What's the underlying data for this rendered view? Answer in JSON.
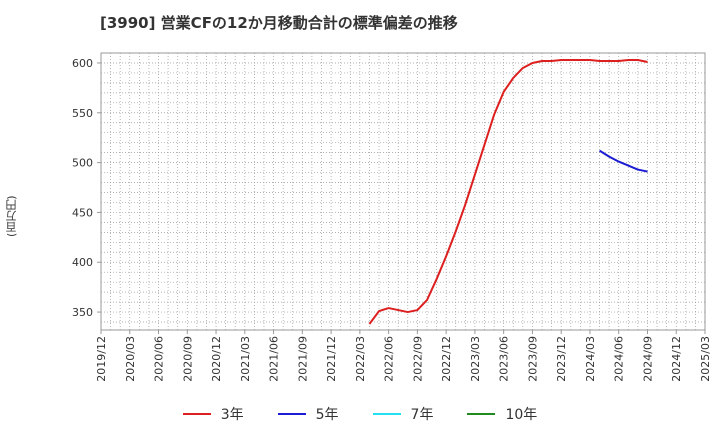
{
  "chart_data": {
    "type": "line",
    "title": "[3990]  営業CFの12か月移動合計の標準偏差の推移",
    "ylabel": "(百万円)",
    "xlabel": "",
    "ylim": [
      332,
      610
    ],
    "yticks": [
      350,
      400,
      450,
      500,
      550,
      600
    ],
    "x_range": [
      "2019/12",
      "2025/03"
    ],
    "xticks": [
      "2019/12",
      "2020/03",
      "2020/06",
      "2020/09",
      "2020/12",
      "2021/03",
      "2021/06",
      "2021/09",
      "2021/12",
      "2022/03",
      "2022/06",
      "2022/09",
      "2022/12",
      "2023/03",
      "2023/06",
      "2023/09",
      "2023/12",
      "2024/03",
      "2024/06",
      "2024/09",
      "2024/12",
      "2025/03"
    ],
    "grid": true,
    "legend_position": "bottom",
    "series": [
      {
        "name": "3年",
        "color": "#dd1f1f",
        "x": [
          "2022/04",
          "2022/05",
          "2022/06",
          "2022/07",
          "2022/08",
          "2022/09",
          "2022/10",
          "2022/11",
          "2022/12",
          "2023/01",
          "2023/02",
          "2023/03",
          "2023/04",
          "2023/05",
          "2023/06",
          "2023/07",
          "2023/08",
          "2023/09",
          "2023/10",
          "2023/11",
          "2023/12",
          "2024/01",
          "2024/02",
          "2024/03",
          "2024/04",
          "2024/05",
          "2024/06",
          "2024/07",
          "2024/08",
          "2024/09"
        ],
        "values": [
          338,
          351,
          354,
          352,
          350,
          352,
          362,
          383,
          406,
          431,
          458,
          488,
          518,
          548,
          571,
          585,
          595,
          600,
          602,
          602,
          603,
          603,
          603,
          603,
          602,
          602,
          602,
          603,
          603,
          601
        ]
      },
      {
        "name": "5年",
        "color": "#1c1cd4",
        "x": [
          "2024/04",
          "2024/05",
          "2024/06",
          "2024/07",
          "2024/08",
          "2024/09"
        ],
        "values": [
          512,
          506,
          501,
          497,
          493,
          491
        ]
      },
      {
        "name": "7年",
        "color": "#22e0f0",
        "x": [],
        "values": []
      },
      {
        "name": "10年",
        "color": "#1f8a1f",
        "x": [],
        "values": []
      }
    ]
  }
}
